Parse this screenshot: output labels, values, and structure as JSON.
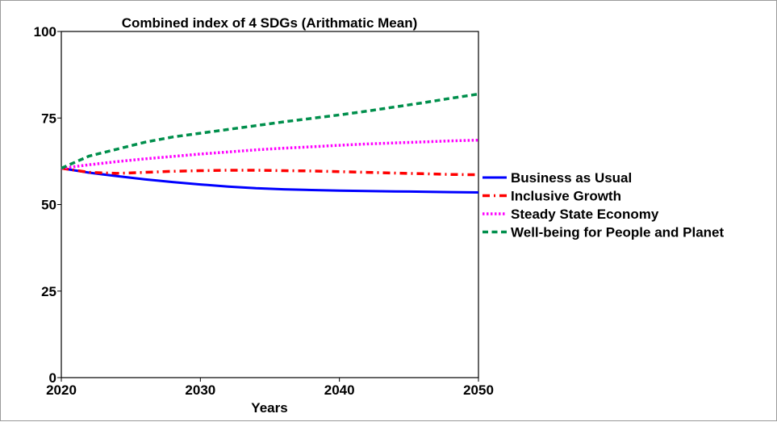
{
  "chart_data": {
    "type": "line",
    "title": "Combined index of 4 SDGs (Arithmatic Mean)",
    "xlabel": "Years",
    "ylabel": "",
    "xlim": [
      2020,
      2050
    ],
    "ylim": [
      0,
      100
    ],
    "x_ticks": [
      "2020",
      "2030",
      "2040",
      "2050"
    ],
    "y_ticks": [
      "0",
      "25",
      "50",
      "75",
      "100"
    ],
    "grid": false,
    "legend_position": "right",
    "x": [
      2020,
      2022,
      2024,
      2026,
      2028,
      2030,
      2032,
      2034,
      2036,
      2038,
      2040,
      2042,
      2044,
      2046,
      2048,
      2050
    ],
    "series": [
      {
        "name": "Business as Usual",
        "color": "#0000ff",
        "dash": "solid",
        "values": [
          60.5,
          59.2,
          58.2,
          57.3,
          56.5,
          55.8,
          55.2,
          54.7,
          54.4,
          54.2,
          54.0,
          53.9,
          53.8,
          53.7,
          53.6,
          53.5
        ]
      },
      {
        "name": "Inclusive Growth",
        "color": "#ff0000",
        "dash": "dash-dot",
        "values": [
          60.5,
          59.3,
          59.0,
          59.3,
          59.6,
          59.8,
          59.9,
          59.9,
          59.8,
          59.7,
          59.5,
          59.3,
          59.1,
          58.9,
          58.7,
          58.6
        ]
      },
      {
        "name": "Steady State Economy",
        "color": "#ff00ff",
        "dash": "dotted",
        "values": [
          60.5,
          61.5,
          62.4,
          63.2,
          63.9,
          64.6,
          65.2,
          65.8,
          66.3,
          66.7,
          67.1,
          67.5,
          67.8,
          68.1,
          68.4,
          68.6
        ]
      },
      {
        "name": "Well-being for People and Planet",
        "color": "#008f4c",
        "dash": "dashed",
        "values": [
          60.5,
          64.0,
          66.0,
          68.0,
          69.5,
          70.6,
          71.7,
          72.8,
          73.9,
          74.9,
          75.9,
          77.0,
          78.2,
          79.4,
          80.7,
          81.9
        ]
      }
    ]
  }
}
